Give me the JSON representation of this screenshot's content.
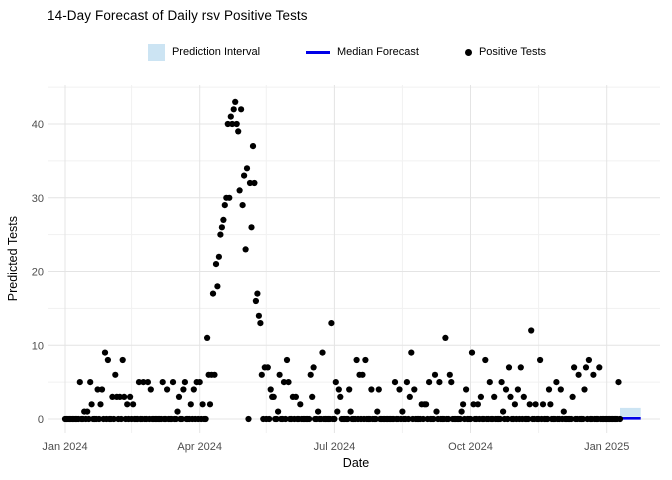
{
  "chart_data": {
    "type": "scatter",
    "title": "14-Day Forecast of Daily rsv Positive Tests",
    "xlabel": "Date",
    "ylabel": "Predicted Tests",
    "legend": [
      {
        "label": "Prediction Interval",
        "key": "band",
        "color": "#CCE4F3"
      },
      {
        "label": "Median Forecast",
        "key": "line",
        "color": "#0000E8"
      },
      {
        "label": "Positive Tests",
        "key": "point",
        "color": "#000000"
      }
    ],
    "x_axis": {
      "tick_labels": [
        "Jan 2024",
        "Apr 2024",
        "Jul 2024",
        "Oct 2024",
        "Jan 2025"
      ],
      "tick_day_index": [
        0,
        91,
        182,
        274,
        366
      ],
      "minor_day_index": [
        45,
        136,
        228,
        320
      ],
      "start_date": "2024-01-01"
    },
    "y_axis": {
      "ticks": [
        0,
        10,
        20,
        30,
        40
      ],
      "minor": [
        5,
        15,
        25,
        35,
        45
      ],
      "range": [
        -2,
        45.5
      ]
    },
    "grid": true,
    "legend_position": "top",
    "series": {
      "observed": {
        "name": "Positive Tests",
        "start_date": "2024-01-01",
        "frequency": "daily",
        "values": [
          0,
          0,
          0,
          0,
          0,
          0,
          0,
          0,
          0,
          0,
          5,
          0,
          0,
          1,
          0,
          1,
          0,
          5,
          2,
          0,
          0,
          0,
          4,
          0,
          2,
          4,
          0,
          9,
          0,
          8,
          0,
          0,
          3,
          0,
          6,
          3,
          0,
          3,
          0,
          8,
          3,
          0,
          2,
          0,
          3,
          0,
          2,
          0,
          0,
          0,
          5,
          0,
          0,
          5,
          0,
          0,
          5,
          0,
          4,
          0,
          0,
          0,
          0,
          0,
          0,
          0,
          5,
          0,
          0,
          4,
          0,
          0,
          0,
          5,
          0,
          0,
          1,
          3,
          0,
          0,
          4,
          5,
          0,
          0,
          0,
          2,
          0,
          4,
          0,
          5,
          0,
          5,
          0,
          2,
          0,
          0,
          11,
          6,
          2,
          6,
          17,
          6,
          21,
          18,
          22,
          25,
          26,
          27,
          29,
          30,
          40,
          30,
          41,
          40,
          42,
          43,
          40,
          39,
          31,
          42,
          29,
          33,
          23,
          34,
          0,
          32,
          26,
          37,
          32,
          16,
          17,
          14,
          13,
          6,
          0,
          7,
          0,
          7,
          0,
          4,
          3,
          3,
          0,
          0,
          1,
          6,
          0,
          0,
          5,
          0,
          8,
          5,
          0,
          0,
          3,
          0,
          3,
          0,
          0,
          2,
          0,
          0,
          0,
          0,
          0,
          0,
          6,
          3,
          7,
          0,
          0,
          1,
          0,
          0,
          9,
          0,
          0,
          0,
          0,
          0,
          13,
          0,
          0,
          5,
          1,
          4,
          3,
          0,
          0,
          0,
          0,
          0,
          4,
          1,
          0,
          0,
          0,
          8,
          0,
          6,
          0,
          6,
          0,
          8,
          0,
          0,
          0,
          4,
          0,
          0,
          0,
          1,
          4,
          0,
          0,
          0,
          0,
          0,
          0,
          0,
          0,
          0,
          0,
          5,
          0,
          0,
          4,
          0,
          1,
          0,
          0,
          5,
          0,
          3,
          9,
          0,
          4,
          0,
          0,
          0,
          0,
          2,
          0,
          2,
          2,
          0,
          5,
          0,
          0,
          0,
          6,
          1,
          0,
          5,
          0,
          0,
          0,
          11,
          0,
          0,
          6,
          5,
          0,
          0,
          0,
          0,
          0,
          0,
          1,
          2,
          0,
          4,
          0,
          0,
          0,
          9,
          2,
          0,
          0,
          2,
          0,
          3,
          0,
          0,
          8,
          0,
          0,
          5,
          0,
          0,
          3,
          0,
          0,
          0,
          0,
          5,
          1,
          0,
          4,
          0,
          7,
          3,
          0,
          0,
          2,
          0,
          4,
          0,
          7,
          0,
          3,
          0,
          0,
          0,
          2,
          12,
          0,
          0,
          2,
          0,
          0,
          8,
          0,
          2,
          0,
          0,
          0,
          4,
          2,
          0,
          0,
          0,
          5,
          0,
          0,
          4,
          0,
          1,
          0,
          0,
          0,
          0,
          0,
          3,
          7,
          0,
          0,
          6,
          0,
          0,
          0,
          4,
          7,
          0,
          8,
          0,
          0,
          6,
          0,
          0,
          0,
          7,
          0,
          0,
          0,
          0,
          0,
          0,
          0,
          0,
          0,
          0,
          0,
          0,
          5,
          0
        ]
      },
      "forecast": {
        "name": "Median Forecast",
        "start_date": "2025-01-11",
        "end_date": "2025-01-24",
        "days": 14,
        "median": 0.1,
        "interval_lower": 0.3,
        "interval_upper": 1.5,
        "interval_label": "Prediction Interval"
      }
    },
    "style": {
      "point_color": "#000000",
      "median_color": "#0000E8",
      "band_color": "#CCE4F3",
      "grid_major": "#E4E4E4",
      "grid_minor": "#F1F1F1",
      "tick_text_color": "#4D4D4D"
    }
  }
}
